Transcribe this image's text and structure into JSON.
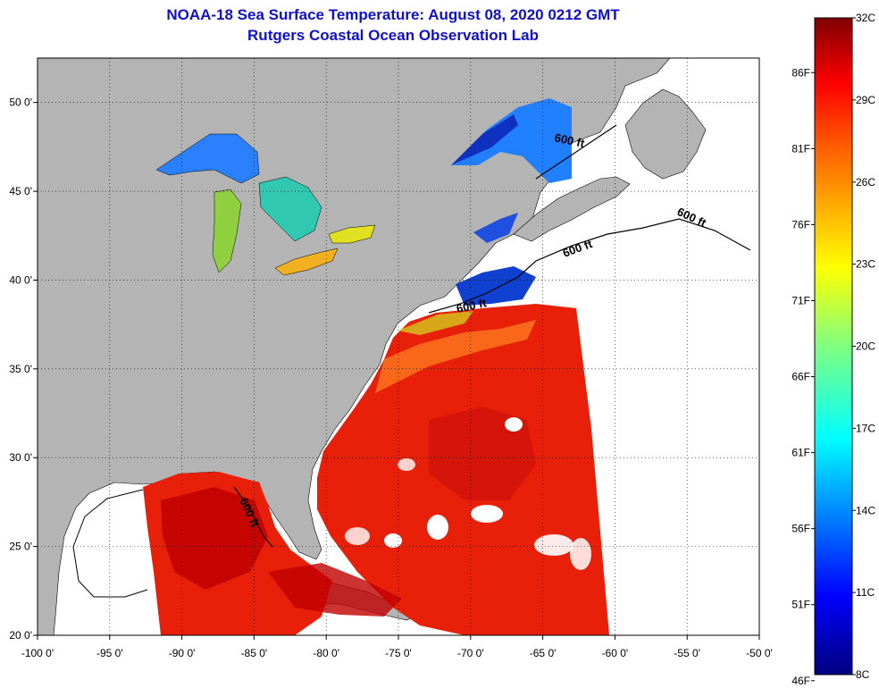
{
  "title": "NOAA-18 Sea Surface Temperature:  August 08, 2020 0212 GMT",
  "subtitle": "Rutgers Coastal Ocean Observation Lab",
  "map": {
    "lon_range": [
      -100,
      -50
    ],
    "lat_range": [
      20,
      52.5
    ],
    "x_ticks": [
      "-100 0'",
      "-95 0'",
      "-90 0'",
      "-85 0'",
      "-80 0'",
      "-75 0'",
      "-70 0'",
      "-65 0'",
      "-60 0'",
      "-55 0'",
      "-50 0'"
    ],
    "x_tick_values": [
      -100,
      -95,
      -90,
      -85,
      -80,
      -75,
      -70,
      -65,
      -60,
      -55,
      -50
    ],
    "y_ticks": [
      "20 0'",
      "25 0'",
      "30 0'",
      "35 0'",
      "40 0'",
      "45 0'",
      "50 0'"
    ],
    "y_tick_values": [
      20,
      25,
      30,
      35,
      40,
      45,
      50
    ],
    "contour_label": "600 ft",
    "colors": {
      "land": "#b4b4b4",
      "ocean_nodata": "#ffffff",
      "sst_warm": "#e8200a",
      "sst_hot": "#c00000",
      "sst_cool": "#1040d0",
      "sst_mid": "#a0e020"
    }
  },
  "colorbar": {
    "celsius_labels": [
      "32C",
      "29C",
      "26C",
      "23C",
      "20C",
      "17C",
      "14C",
      "11C",
      "8C"
    ],
    "celsius_values": [
      32,
      29,
      26,
      23,
      20,
      17,
      14,
      11,
      8
    ],
    "fahrenheit_labels": [
      "86F",
      "81F",
      "76F",
      "71F",
      "66F",
      "61F",
      "56F",
      "51F",
      "46F"
    ],
    "fahrenheit_values": [
      86,
      81,
      76,
      71,
      66,
      61,
      56,
      51,
      46
    ],
    "range_c": [
      8,
      32
    ]
  }
}
